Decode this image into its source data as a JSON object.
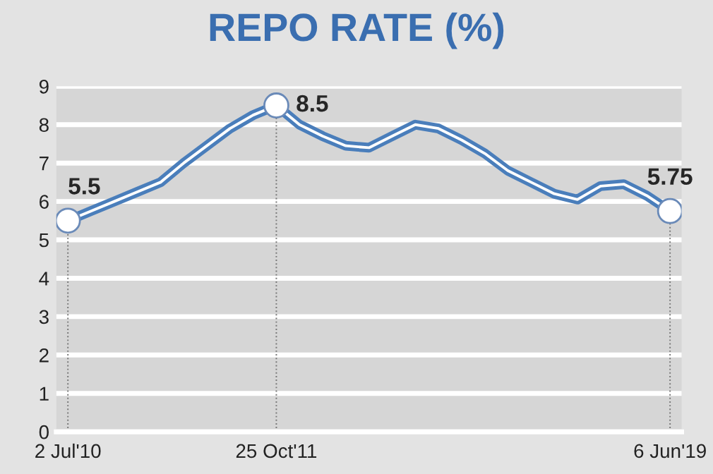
{
  "chart_data": {
    "type": "line",
    "title": "REPO RATE (%)",
    "categories": [
      "2 Jul'10",
      null,
      null,
      null,
      null,
      null,
      null,
      null,
      null,
      "25 Oct'11",
      null,
      null,
      null,
      null,
      null,
      null,
      null,
      null,
      null,
      null,
      null,
      null,
      null,
      null,
      null,
      null,
      "6 Jun'19"
    ],
    "series": [
      {
        "color": "#4a7ebb",
        "values": [
          5.5,
          5.75,
          6.0,
          6.25,
          6.5,
          7.0,
          7.45,
          7.9,
          8.25,
          8.5,
          8.0,
          7.7,
          7.45,
          7.4,
          7.7,
          8.0,
          7.9,
          7.6,
          7.25,
          6.8,
          6.5,
          6.2,
          6.05,
          6.4,
          6.45,
          6.15,
          5.75
        ],
        "value_labels": [
          "5.5",
          null,
          null,
          null,
          null,
          null,
          null,
          null,
          null,
          "8.5",
          null,
          null,
          null,
          null,
          null,
          null,
          null,
          null,
          null,
          null,
          null,
          null,
          null,
          null,
          null,
          null,
          "5.75"
        ]
      }
    ],
    "ylim": [
      0,
      9
    ],
    "yticks": [
      0,
      1,
      2,
      3,
      4,
      5,
      6,
      7,
      8,
      9
    ],
    "grid": "y",
    "line_style": "solid"
  }
}
